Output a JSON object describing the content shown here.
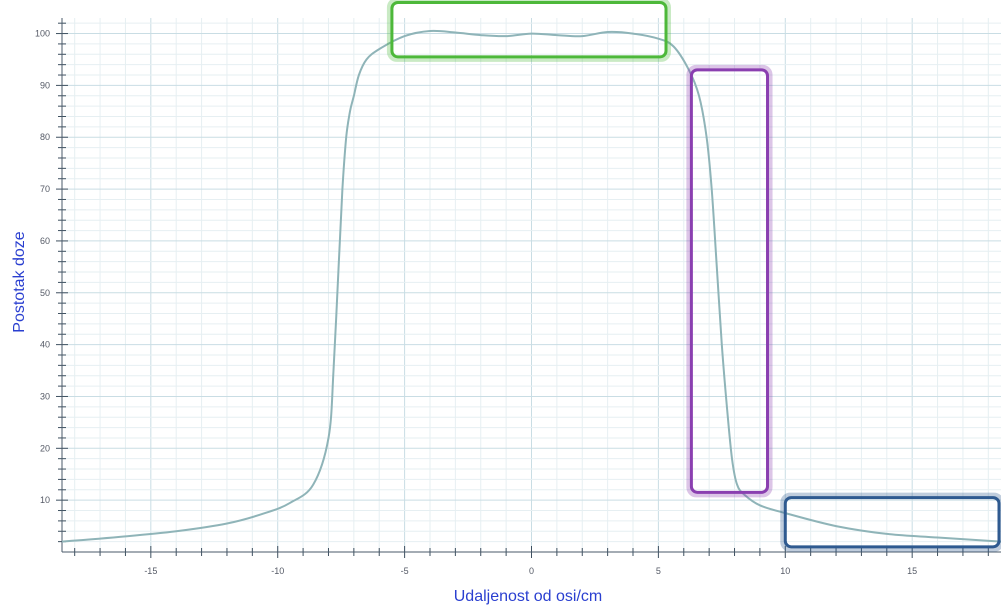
{
  "chart_data": {
    "type": "line",
    "xlabel": "Udaljenost od osi/cm",
    "ylabel": "Postotak doze",
    "xlim": [
      -18.5,
      18.5
    ],
    "ylim": [
      0,
      103
    ],
    "x_ticks": [
      -15,
      -10,
      -5,
      0,
      5,
      10,
      15
    ],
    "x_tick_labels": [
      "-15",
      "-10",
      "-5",
      "0",
      "5",
      "10",
      "15"
    ],
    "y_ticks": [
      10,
      20,
      30,
      40,
      50,
      60,
      70,
      80,
      90,
      100
    ],
    "y_tick_labels": [
      "10",
      "20",
      "30",
      "40",
      "50",
      "60",
      "70",
      "80",
      "90",
      "100"
    ],
    "grid": true,
    "series": [
      {
        "color": "#8fb4b8",
        "x": [
          -18.5,
          -16,
          -14,
          -12,
          -10.5,
          -9.5,
          -8.6,
          -8.0,
          -7.8,
          -7.6,
          -7.45,
          -7.3,
          -7.15,
          -7.0,
          -6.8,
          -6.5,
          -6.0,
          -5.0,
          -4.0,
          -3.0,
          -2.0,
          -1.0,
          0,
          1.0,
          2.0,
          3.0,
          4.0,
          5.0,
          5.6,
          6.2,
          6.6,
          6.9,
          7.1,
          7.3,
          7.5,
          7.7,
          7.9,
          8.1,
          8.4,
          9.0,
          10.0,
          12.0,
          14.0,
          16.0,
          18.5
        ],
        "y": [
          2,
          3,
          4,
          5.5,
          7.5,
          9.5,
          13,
          22,
          35,
          55,
          70,
          80,
          85,
          88,
          92,
          95,
          97,
          99.5,
          100.5,
          100.2,
          99.7,
          99.5,
          100,
          99.7,
          99.5,
          100.3,
          100,
          99,
          97.5,
          93,
          88,
          80,
          70,
          55,
          40,
          28,
          18,
          13,
          11,
          9,
          7.5,
          5,
          3.5,
          2.8,
          2
        ]
      }
    ],
    "highlight_boxes": [
      {
        "color": "#4db83a",
        "x_range": [
          -5.5,
          5.3
        ],
        "y_range": [
          95.5,
          106
        ]
      },
      {
        "color": "#8a3fb0",
        "x_range": [
          6.3,
          9.3
        ],
        "y_range": [
          11.5,
          93
        ]
      },
      {
        "color": "#2f5a90",
        "x_range": [
          10.0,
          18.5
        ],
        "y_range": [
          1.0,
          10.5
        ]
      }
    ]
  }
}
